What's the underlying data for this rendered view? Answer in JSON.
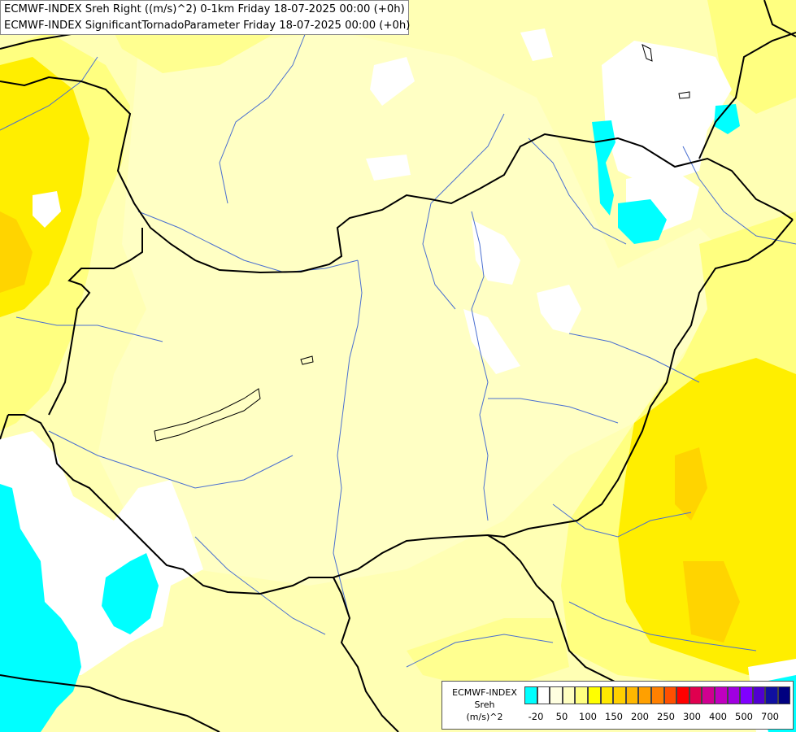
{
  "titles": {
    "line1": "ECMWF-INDEX Sreh Right ((m/s)^2) 0-1km Friday 18-07-2025 00:00 (+0h)",
    "line2": "ECMWF-INDEX SignificantTornadoParameter Friday 18-07-2025 00:00 (+0h)"
  },
  "legend": {
    "line1": "ECMWF-INDEX",
    "line2": "Sreh",
    "line3": "(m/s)^2",
    "colors": [
      "#00ffff",
      "#ffffff",
      "#ffffe0",
      "#ffffc0",
      "#ffff80",
      "#ffff00",
      "#ffe800",
      "#ffd000",
      "#ffb800",
      "#ffa000",
      "#ff8000",
      "#ff5000",
      "#ff0000",
      "#e0004f",
      "#d00090",
      "#c000c0",
      "#a000e0",
      "#8000ff",
      "#5000d0",
      "#1010a0",
      "#000080"
    ],
    "ticks": [
      "-20",
      "50",
      "100",
      "150",
      "200",
      "250",
      "300",
      "400",
      "500",
      "700"
    ]
  },
  "map_colors": {
    "base": "#ffffb4",
    "light": "#ffffc4",
    "medium": "#ffff80",
    "strong": "#ffee00",
    "stronger": "#ffd400",
    "white": "#ffffff",
    "cyan": "#00ffff",
    "border": "#000000",
    "river": "#4a6fd0"
  }
}
